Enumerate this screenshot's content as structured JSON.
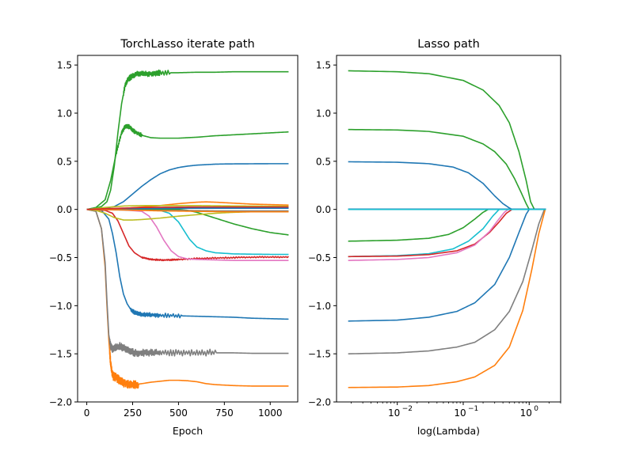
{
  "colors": {
    "background": "#ffffff",
    "axes": "#000000",
    "blue": "#1f77b4",
    "orange": "#ff7f0e",
    "green": "#2ca02c",
    "red": "#d62728",
    "pink": "#e377c2",
    "gray": "#7f7f7f",
    "olive": "#bcbd22",
    "cyan": "#17becf"
  },
  "chart_data": [
    {
      "type": "line",
      "title": "TorchLasso iterate path",
      "xlabel": "Epoch",
      "ylabel": "",
      "xscale": "linear",
      "xlim": [
        -50,
        1150
      ],
      "ylim": [
        -2.0,
        1.6
      ],
      "xticks": [
        0,
        250,
        500,
        750,
        1000
      ],
      "xtick_labels": [
        "0",
        "250",
        "500",
        "750",
        "1000"
      ],
      "yticks": [
        -2.0,
        -1.5,
        -1.0,
        -0.5,
        0.0,
        0.5,
        1.0,
        1.5
      ],
      "ytick_labels": [
        "−2.0",
        "−1.5",
        "−1.0",
        "−0.5",
        "0.0",
        "0.5",
        "1.0",
        "1.5"
      ],
      "grid": false,
      "legend": "none",
      "series": [
        {
          "color": "green",
          "x": [
            0,
            40,
            80,
            110,
            130,
            150,
            170,
            190,
            210,
            230,
            250,
            275,
            300,
            350,
            400,
            500,
            600,
            700,
            800,
            900,
            1000,
            1100
          ],
          "y": [
            0,
            0.01,
            0.03,
            0.08,
            0.2,
            0.45,
            0.8,
            1.1,
            1.3,
            1.36,
            1.39,
            1.41,
            1.41,
            1.41,
            1.42,
            1.42,
            1.425,
            1.425,
            1.43,
            1.43,
            1.43,
            1.43
          ],
          "jitter": [
            200,
            450,
            0.02
          ]
        },
        {
          "color": "green",
          "x": [
            0,
            50,
            100,
            130,
            160,
            190,
            210,
            230,
            260,
            300,
            350,
            400,
            450,
            500,
            550,
            600,
            700,
            800,
            900,
            1000,
            1100
          ],
          "y": [
            0,
            0.02,
            0.1,
            0.3,
            0.58,
            0.8,
            0.86,
            0.86,
            0.81,
            0.77,
            0.745,
            0.74,
            0.74,
            0.74,
            0.745,
            0.75,
            0.765,
            0.775,
            0.785,
            0.795,
            0.805
          ],
          "jitter": [
            160,
            300,
            0.015
          ]
        },
        {
          "color": "blue",
          "x": [
            0,
            100,
            150,
            200,
            250,
            300,
            350,
            400,
            450,
            500,
            550,
            600,
            650,
            700,
            750,
            800,
            900,
            1000,
            1100
          ],
          "y": [
            0,
            0.01,
            0.03,
            0.08,
            0.16,
            0.24,
            0.31,
            0.37,
            0.41,
            0.435,
            0.45,
            0.46,
            0.465,
            0.47,
            0.472,
            0.473,
            0.474,
            0.475,
            0.475
          ]
        },
        {
          "color": "orange",
          "x": [
            0,
            50,
            80,
            100,
            110,
            120,
            130,
            140,
            150,
            165,
            180,
            200,
            230,
            260,
            300,
            350,
            400,
            450,
            500,
            550,
            600,
            650,
            700,
            800,
            900,
            1000,
            1100
          ],
          "y": [
            0,
            -0.02,
            -0.2,
            -0.6,
            -1.0,
            -1.35,
            -1.6,
            -1.72,
            -1.74,
            -1.75,
            -1.78,
            -1.8,
            -1.82,
            -1.82,
            -1.81,
            -1.795,
            -1.785,
            -1.775,
            -1.775,
            -1.78,
            -1.79,
            -1.81,
            -1.82,
            -1.83,
            -1.835,
            -1.835,
            -1.835
          ],
          "jitter": [
            125,
            280,
            0.03
          ]
        },
        {
          "color": "gray",
          "x": [
            0,
            50,
            80,
            100,
            110,
            120,
            130,
            140,
            160,
            180,
            200,
            230,
            260,
            300,
            350,
            400,
            500,
            600,
            700,
            800,
            900,
            1000,
            1100
          ],
          "y": [
            0,
            -0.02,
            -0.2,
            -0.55,
            -0.95,
            -1.3,
            -1.42,
            -1.45,
            -1.43,
            -1.42,
            -1.44,
            -1.47,
            -1.49,
            -1.49,
            -1.49,
            -1.49,
            -1.49,
            -1.49,
            -1.49,
            -1.49,
            -1.495,
            -1.495,
            -1.495
          ],
          "jitter": [
            125,
            700,
            0.025
          ]
        },
        {
          "color": "blue",
          "x": [
            0,
            80,
            120,
            140,
            160,
            180,
            200,
            220,
            240,
            260,
            280,
            300,
            350,
            400,
            500,
            600,
            700,
            800,
            900,
            1000,
            1100
          ],
          "y": [
            0,
            -0.01,
            -0.1,
            -0.25,
            -0.45,
            -0.7,
            -0.88,
            -0.98,
            -1.04,
            -1.07,
            -1.08,
            -1.09,
            -1.095,
            -1.1,
            -1.105,
            -1.11,
            -1.115,
            -1.12,
            -1.13,
            -1.135,
            -1.14
          ],
          "jitter": [
            240,
            520,
            0.015
          ]
        },
        {
          "color": "red",
          "x": [
            0,
            100,
            140,
            170,
            200,
            230,
            260,
            300,
            350,
            400,
            450,
            500,
            600,
            700,
            800,
            900,
            1000,
            1100
          ],
          "y": [
            0,
            -0.01,
            -0.04,
            -0.12,
            -0.25,
            -0.38,
            -0.45,
            -0.5,
            -0.52,
            -0.525,
            -0.525,
            -0.52,
            -0.51,
            -0.505,
            -0.5,
            -0.497,
            -0.495,
            -0.495
          ],
          "jitter": [
            300,
            1100,
            0.005
          ]
        },
        {
          "color": "pink",
          "x": [
            0,
            200,
            300,
            340,
            380,
            420,
            460,
            500,
            550,
            600,
            700,
            800,
            900,
            1000,
            1100
          ],
          "y": [
            0,
            -0.005,
            -0.02,
            -0.07,
            -0.18,
            -0.32,
            -0.43,
            -0.49,
            -0.515,
            -0.52,
            -0.525,
            -0.53,
            -0.53,
            -0.53,
            -0.53
          ]
        },
        {
          "color": "cyan",
          "x": [
            0,
            300,
            400,
            450,
            500,
            530,
            560,
            600,
            650,
            700,
            800,
            900,
            1000,
            1100
          ],
          "y": [
            0,
            0,
            -0.01,
            -0.04,
            -0.13,
            -0.22,
            -0.31,
            -0.39,
            -0.43,
            -0.45,
            -0.462,
            -0.465,
            -0.467,
            -0.467
          ]
        },
        {
          "color": "green",
          "x": [
            0,
            400,
            500,
            550,
            600,
            650,
            700,
            750,
            800,
            900,
            1000,
            1100
          ],
          "y": [
            0,
            0,
            0,
            -0.01,
            -0.03,
            -0.06,
            -0.09,
            -0.12,
            -0.15,
            -0.2,
            -0.24,
            -0.265
          ]
        },
        {
          "color": "olive",
          "x": [
            0,
            50,
            100,
            150,
            200,
            250,
            300,
            400,
            500,
            600,
            700,
            800,
            900,
            1000,
            1100
          ],
          "y": [
            0,
            -0.01,
            -0.04,
            -0.085,
            -0.11,
            -0.11,
            -0.105,
            -0.09,
            -0.07,
            -0.055,
            -0.04,
            -0.03,
            -0.025,
            -0.022,
            -0.02
          ]
        },
        {
          "color": "orange",
          "x": [
            0,
            200,
            400,
            500,
            600,
            650,
            700,
            800,
            900,
            1000,
            1100
          ],
          "y": [
            0,
            0.01,
            0.04,
            0.06,
            0.075,
            0.078,
            0.075,
            0.065,
            0.055,
            0.05,
            0.045
          ]
        },
        {
          "color": "olive",
          "x": [
            0,
            100,
            200,
            300,
            400,
            500,
            600,
            700,
            800,
            900,
            1000,
            1100
          ],
          "y": [
            0,
            0.02,
            0.035,
            0.04,
            0.04,
            0.04,
            0.04,
            0.038,
            0.036,
            0.035,
            0.034,
            0.033
          ]
        },
        {
          "color": "cyan",
          "x": [
            0,
            150,
            300,
            500,
            700,
            900,
            1100
          ],
          "y": [
            0,
            0.005,
            0.01,
            0.015,
            0.015,
            0.015,
            0.015
          ]
        },
        {
          "color": "gray",
          "x": [
            0,
            150,
            300,
            500,
            700,
            900,
            1100
          ],
          "y": [
            0,
            -0.005,
            -0.01,
            -0.01,
            -0.015,
            -0.015,
            -0.015
          ]
        },
        {
          "color": "blue",
          "x": [
            0,
            200,
            400,
            600,
            800,
            1000,
            1100
          ],
          "y": [
            0,
            0.005,
            0.01,
            0.012,
            0.012,
            0.012,
            0.012
          ]
        },
        {
          "color": "orange",
          "x": [
            0,
            200,
            300,
            400,
            600,
            800,
            1000,
            1100
          ],
          "y": [
            0,
            -0.005,
            -0.01,
            -0.015,
            -0.02,
            -0.025,
            -0.025,
            -0.025
          ]
        },
        {
          "color": "red",
          "x": [
            0,
            300,
            600,
            900,
            1100
          ],
          "y": [
            0,
            0.02,
            0.025,
            0.025,
            0.025
          ]
        }
      ]
    },
    {
      "type": "line",
      "title": "Lasso path",
      "xlabel": "log(Lambda)",
      "ylabel": "",
      "xscale": "log",
      "xlim": [
        0.0012,
        3.0
      ],
      "ylim": [
        -2.0,
        1.6
      ],
      "xticks": [
        0.01,
        0.1,
        1.0
      ],
      "xtick_labels": [
        "10",
        "10",
        "10"
      ],
      "xtick_exponents": [
        "−2",
        "−1",
        "0"
      ],
      "yticks": [
        -2.0,
        -1.5,
        -1.0,
        -0.5,
        0.0,
        0.5,
        1.0,
        1.5
      ],
      "ytick_labels": [
        "−2.0",
        "−1.5",
        "−1.0",
        "−0.5",
        "0.0",
        "0.5",
        "1.0",
        "1.5"
      ],
      "grid": false,
      "legend": "none",
      "series": [
        {
          "color": "green",
          "x": [
            0.0018,
            0.01,
            0.03,
            0.1,
            0.2,
            0.35,
            0.5,
            0.7,
            0.9,
            1.05,
            1.2
          ],
          "y": [
            1.44,
            1.43,
            1.41,
            1.34,
            1.24,
            1.08,
            0.9,
            0.6,
            0.3,
            0.08,
            0
          ]
        },
        {
          "color": "green",
          "x": [
            0.0018,
            0.01,
            0.03,
            0.1,
            0.2,
            0.3,
            0.45,
            0.6,
            0.75,
            0.9,
            1.0
          ],
          "y": [
            0.83,
            0.825,
            0.81,
            0.76,
            0.68,
            0.6,
            0.47,
            0.32,
            0.18,
            0.06,
            0
          ]
        },
        {
          "color": "blue",
          "x": [
            0.0018,
            0.01,
            0.03,
            0.07,
            0.12,
            0.2,
            0.3,
            0.4,
            0.5,
            0.55
          ],
          "y": [
            0.495,
            0.49,
            0.475,
            0.44,
            0.38,
            0.27,
            0.14,
            0.06,
            0.015,
            0
          ]
        },
        {
          "color": "green",
          "x": [
            0.0018,
            0.01,
            0.03,
            0.06,
            0.1,
            0.15,
            0.2,
            0.24
          ],
          "y": [
            -0.33,
            -0.32,
            -0.3,
            -0.26,
            -0.19,
            -0.1,
            -0.03,
            0
          ]
        },
        {
          "color": "cyan",
          "x": [
            0.0018,
            0.01,
            0.03,
            0.07,
            0.12,
            0.2,
            0.28,
            0.35
          ],
          "y": [
            -0.49,
            -0.48,
            -0.46,
            -0.41,
            -0.33,
            -0.2,
            -0.07,
            0
          ]
        },
        {
          "color": "red",
          "x": [
            0.0018,
            0.01,
            0.03,
            0.08,
            0.15,
            0.25,
            0.35,
            0.45,
            0.55
          ],
          "y": [
            -0.49,
            -0.485,
            -0.47,
            -0.43,
            -0.36,
            -0.24,
            -0.13,
            -0.04,
            0
          ]
        },
        {
          "color": "pink",
          "x": [
            0.0018,
            0.01,
            0.03,
            0.08,
            0.15,
            0.25,
            0.33,
            0.42,
            0.48
          ],
          "y": [
            -0.53,
            -0.52,
            -0.5,
            -0.45,
            -0.37,
            -0.23,
            -0.12,
            -0.03,
            0
          ]
        },
        {
          "color": "blue",
          "x": [
            0.0018,
            0.01,
            0.03,
            0.08,
            0.15,
            0.3,
            0.5,
            0.7,
            0.9,
            1.0
          ],
          "y": [
            -1.16,
            -1.15,
            -1.12,
            -1.06,
            -0.97,
            -0.78,
            -0.5,
            -0.24,
            -0.05,
            0
          ]
        },
        {
          "color": "gray",
          "x": [
            0.0018,
            0.01,
            0.03,
            0.08,
            0.15,
            0.3,
            0.5,
            0.8,
            1.1,
            1.4,
            1.7
          ],
          "y": [
            -1.5,
            -1.49,
            -1.47,
            -1.43,
            -1.38,
            -1.25,
            -1.06,
            -0.75,
            -0.42,
            -0.15,
            0
          ]
        },
        {
          "color": "orange",
          "x": [
            0.0018,
            0.01,
            0.03,
            0.08,
            0.15,
            0.3,
            0.5,
            0.8,
            1.1,
            1.4,
            1.75
          ],
          "y": [
            -1.85,
            -1.845,
            -1.83,
            -1.79,
            -1.74,
            -1.62,
            -1.43,
            -1.05,
            -0.62,
            -0.25,
            0
          ]
        },
        {
          "color": "olive",
          "x": [
            0.0018,
            1.8
          ],
          "y": [
            0.0,
            0.0
          ]
        },
        {
          "color": "blue",
          "x": [
            0.0018,
            1.8
          ],
          "y": [
            0.003,
            0.003
          ]
        },
        {
          "color": "cyan",
          "x": [
            0.0018,
            1.8
          ],
          "y": [
            0.0,
            0.0
          ]
        }
      ]
    }
  ]
}
